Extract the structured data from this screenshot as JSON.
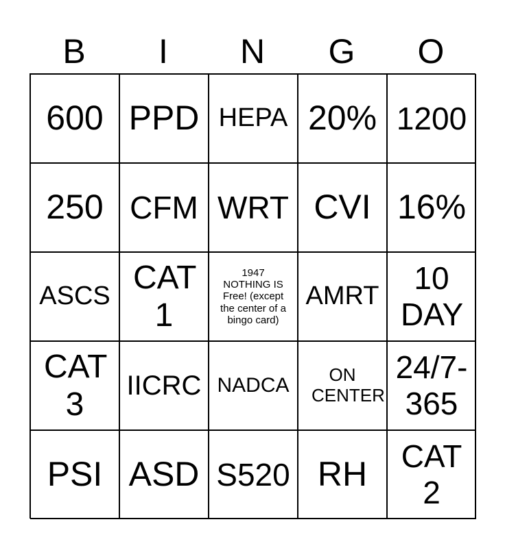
{
  "header": [
    "B",
    "I",
    "N",
    "G",
    "O"
  ],
  "cells": [
    [
      "600",
      "PPD",
      "HEPA",
      "20%",
      "1200"
    ],
    [
      "250",
      "CFM",
      "WRT",
      "CVI",
      "16%"
    ],
    [
      "ASCS",
      "CAT 1",
      "1947 NOTHING IS Free! (except the center of a bingo card)",
      "AMRT",
      "10 DAY"
    ],
    [
      "CAT 3",
      "IICRC",
      "NADCA",
      "ON CENTER",
      "24/7-365"
    ],
    [
      "PSI",
      "ASD",
      "S520",
      "RH",
      "CAT 2"
    ]
  ]
}
